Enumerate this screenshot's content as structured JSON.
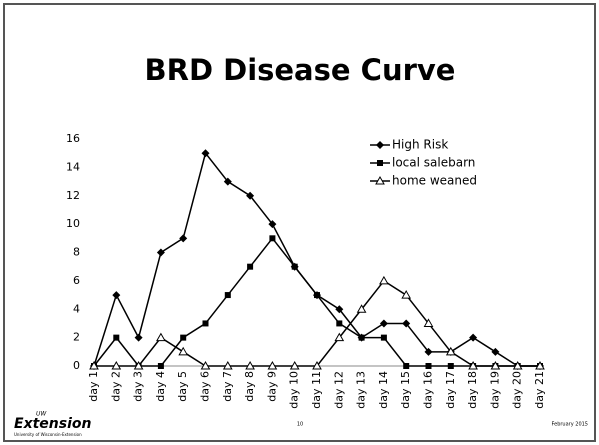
{
  "chart_data": {
    "type": "line",
    "title": "BRD Disease Curve",
    "categories": [
      "day 1",
      "day 2",
      "day 3",
      "day 4",
      "day 5",
      "day 6",
      "day 7",
      "day 8",
      "day 9",
      "day 10",
      "day 11",
      "day 12",
      "day 13",
      "day 14",
      "day 15",
      "day 16",
      "day 17",
      "day 18",
      "day 19",
      "day 20",
      "day 21"
    ],
    "series": [
      {
        "name": "High Risk",
        "color": "#000000",
        "marker": "diamond",
        "values": [
          0,
          5,
          2,
          8,
          9,
          15,
          13,
          12,
          10,
          7,
          5,
          4,
          2,
          3,
          3,
          1,
          1,
          2,
          1,
          0,
          0
        ]
      },
      {
        "name": "local salebarn",
        "color": "#000000",
        "marker": "square",
        "values": [
          0,
          2,
          0,
          0,
          2,
          3,
          5,
          7,
          9,
          7,
          5,
          3,
          2,
          2,
          0,
          0,
          0,
          0,
          0,
          0,
          0
        ]
      },
      {
        "name": "home weaned",
        "color": "#000000",
        "marker": "triangle",
        "values": [
          0,
          0,
          0,
          2,
          1,
          0,
          0,
          0,
          0,
          0,
          0,
          2,
          4,
          6,
          5,
          3,
          1,
          0,
          0,
          0,
          0
        ]
      }
    ],
    "ylim": [
      0,
      16
    ],
    "yticks": [
      0,
      2,
      4,
      6,
      8,
      10,
      12,
      14,
      16
    ],
    "grid": false,
    "legend": "top-right"
  },
  "footer": {
    "logo_superscript": "UW",
    "logo": "Extension",
    "logo_subtitle": "University of Wisconsin-Extension",
    "page_number": "10",
    "date": "February 2015"
  }
}
